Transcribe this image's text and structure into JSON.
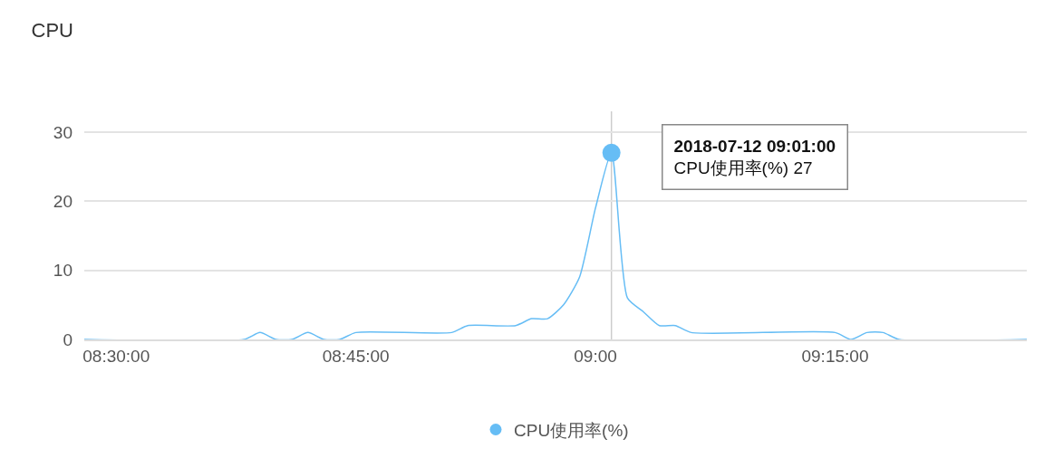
{
  "chart_data": {
    "type": "line",
    "title": "CPU",
    "x": [
      "2018-07-12T08:28",
      "2018-07-12T08:38",
      "2018-07-12T08:39",
      "2018-07-12T08:40",
      "2018-07-12T08:41",
      "2018-07-12T08:42",
      "2018-07-12T08:43",
      "2018-07-12T08:44",
      "2018-07-12T08:45",
      "2018-07-12T08:51",
      "2018-07-12T08:52",
      "2018-07-12T08:55",
      "2018-07-12T08:56",
      "2018-07-12T08:57",
      "2018-07-12T08:58",
      "2018-07-12T08:59",
      "2018-07-12T09:00",
      "2018-07-12T09:01",
      "2018-07-12T09:02",
      "2018-07-12T09:03",
      "2018-07-12T09:04",
      "2018-07-12T09:05",
      "2018-07-12T09:06",
      "2018-07-12T09:15",
      "2018-07-12T09:16",
      "2018-07-12T09:17",
      "2018-07-12T09:18",
      "2018-07-12T09:19",
      "2018-07-12T09:27"
    ],
    "series": [
      {
        "name": "CPU使用率(%)",
        "color": "#66bdf5",
        "values": [
          0,
          0,
          1,
          0,
          0,
          1,
          0,
          0,
          1,
          1,
          2,
          2,
          3,
          3,
          5,
          9,
          19,
          27,
          6,
          4,
          2,
          2,
          1,
          1,
          0,
          1,
          1,
          0,
          0
        ]
      }
    ],
    "xlim": [
      "2018-07-12T08:28",
      "2018-07-12T09:27"
    ],
    "xticks": [
      {
        "value": "2018-07-12T08:30",
        "label": "08:30:00"
      },
      {
        "value": "2018-07-12T08:45",
        "label": "08:45:00"
      },
      {
        "value": "2018-07-12T09:00",
        "label": "09:00"
      },
      {
        "value": "2018-07-12T09:15",
        "label": "09:15:00"
      }
    ],
    "ylim": [
      0,
      33
    ],
    "yticks": [
      0,
      10,
      20,
      30
    ],
    "grid": "y",
    "legend": "bottom",
    "marker": "none",
    "line_style": "solid",
    "ref_lines": [
      {
        "axis": "x",
        "value": "2018-07-12T09:01",
        "color": "#cccccc"
      }
    ],
    "annotations": [
      "2018-07-12 09:01:00\nCPU使用率(%) 27"
    ]
  }
}
